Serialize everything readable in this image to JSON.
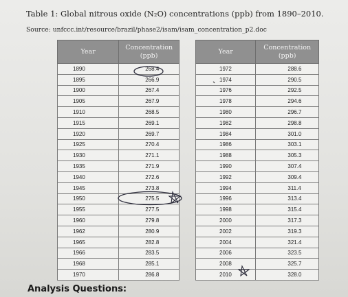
{
  "title": "Table 1: Global nitrous oxide (N₂O) concentrations (ppb) from 1890–2010.",
  "source": "Source: unfccc.int/resource/brazil/phase2/isam/isam_concentration_p2.doc",
  "table_left": {
    "headers": [
      "Year",
      "Concentration (ppb)"
    ],
    "rows": [
      [
        "1890",
        "268.4"
      ],
      [
        "1895",
        "266.9"
      ],
      [
        "1900",
        "267.4"
      ],
      [
        "1905",
        "267.9"
      ],
      [
        "1910",
        "268.5"
      ],
      [
        "1915",
        "269.1"
      ],
      [
        "1920",
        "269.7"
      ],
      [
        "1925",
        "270.4"
      ],
      [
        "1930",
        "271.1"
      ],
      [
        "1935",
        "271.9"
      ],
      [
        "1940",
        "272.6"
      ],
      [
        "1945",
        "273.8"
      ],
      [
        "1950",
        "275.5"
      ],
      [
        "1955",
        "277.5"
      ],
      [
        "1960",
        "279.8"
      ],
      [
        "1962",
        "280.9"
      ],
      [
        "1965",
        "282.8"
      ],
      [
        "1966",
        "283.5"
      ],
      [
        "1968",
        "285.1"
      ],
      [
        "1970",
        "286.8"
      ]
    ]
  },
  "table_right": {
    "headers": [
      "Year",
      "Concentration (ppb)"
    ],
    "rows": [
      [
        "1972",
        "288.6"
      ],
      [
        "1974",
        "290.5"
      ],
      [
        "1976",
        "292.5"
      ],
      [
        "1978",
        "294.6"
      ],
      [
        "1980",
        "296.7"
      ],
      [
        "1982",
        "298.8"
      ],
      [
        "1984",
        "301.0"
      ],
      [
        "1986",
        "303.1"
      ],
      [
        "1988",
        "305.3"
      ],
      [
        "1990",
        "307.4"
      ],
      [
        "1992",
        "309.4"
      ],
      [
        "1994",
        "311.4"
      ],
      [
        "1996",
        "313.4"
      ],
      [
        "1998",
        "315.4"
      ],
      [
        "2000",
        "317.3"
      ],
      [
        "2002",
        "319.3"
      ],
      [
        "2004",
        "321.4"
      ],
      [
        "2006",
        "323.5"
      ],
      [
        "2008",
        "325.7"
      ],
      [
        "2010",
        "328.0"
      ]
    ]
  },
  "analysis_heading": "Analysis Questions:"
}
